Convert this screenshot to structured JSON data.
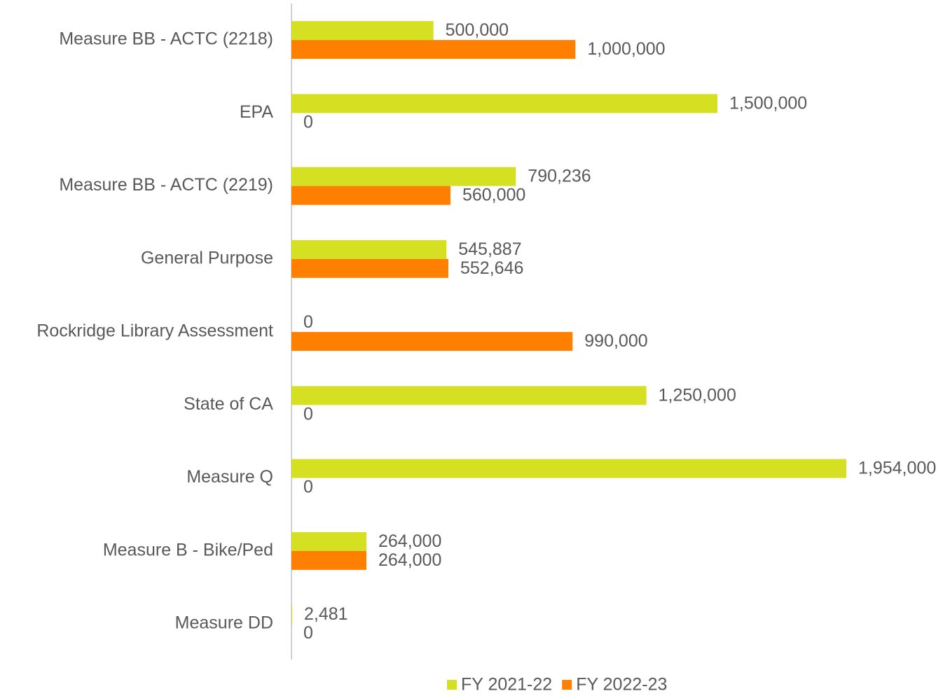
{
  "chart_data": {
    "type": "barh",
    "categories": [
      "Measure BB - ACTC (2218)",
      "EPA",
      "Measure BB - ACTC (2219)",
      "General Purpose",
      "Rockridge Library Assessment",
      "State of CA",
      "Measure Q",
      "Measure B - Bike/Ped",
      "Measure DD"
    ],
    "series": [
      {
        "name": "FY 2021-22",
        "color": "#d4e021",
        "values": [
          500000,
          1500000,
          790236,
          545887,
          0,
          1250000,
          1954000,
          264000,
          2481
        ],
        "value_labels": [
          "500,000",
          "1,500,000",
          "790,236",
          "545,887",
          "0",
          "1,250,000",
          "1,954,000",
          "264,000",
          "2,481"
        ]
      },
      {
        "name": "FY 2022-23",
        "color": "#ff8000",
        "values": [
          1000000,
          0,
          560000,
          552646,
          990000,
          0,
          0,
          264000,
          0
        ],
        "value_labels": [
          "1,000,000",
          "0",
          "560,000",
          "552,646",
          "990,000",
          "0",
          "0",
          "264,000",
          "0"
        ]
      }
    ],
    "legend": "bottom"
  }
}
